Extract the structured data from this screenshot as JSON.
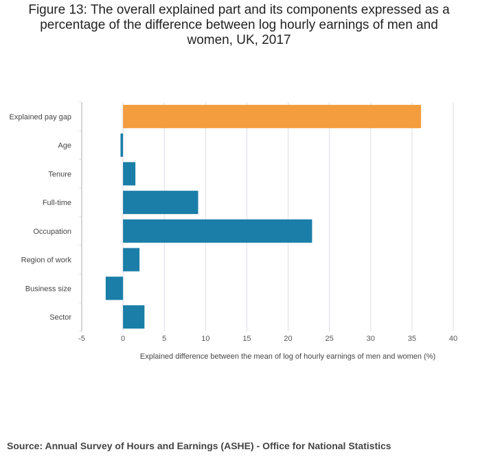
{
  "chart_data": {
    "type": "bar",
    "orientation": "horizontal",
    "title": "Figure 13: The overall explained part and its components expressed as a\npercentage of the difference between log hourly earnings of men and\nwomen, UK, 2017",
    "categories": [
      "Explained pay gap",
      "Age",
      "Tenure",
      "Full-time",
      "Occupation",
      "Region of work",
      "Business size",
      "Sector"
    ],
    "values": [
      36.1,
      -0.3,
      1.5,
      9.1,
      22.9,
      2.0,
      -2.1,
      2.6
    ],
    "highlight_index": 0,
    "xlabel": "Explained difference between the mean of log of hourly earnings of men and women (%)",
    "ylabel": "",
    "xlim": [
      -5,
      40
    ],
    "xticks": [
      -5,
      0,
      5,
      10,
      15,
      20,
      25,
      30,
      35,
      40
    ],
    "grid": true,
    "colors": {
      "highlight": "#f39d3e",
      "bar": "#1a7ea8",
      "grid": "#dcdce6",
      "axis": "#aaaaaa"
    }
  },
  "source": "Source: Annual Survey of Hours and Earnings (ASHE) - Office for National Statistics"
}
